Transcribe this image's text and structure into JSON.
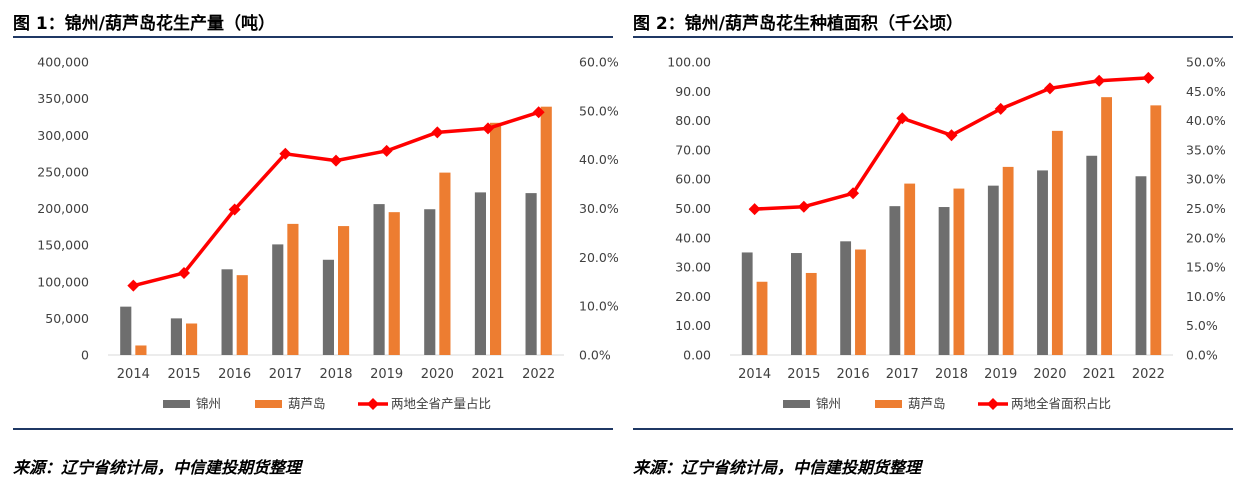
{
  "colors": {
    "jinzhou": "#6e6e6e",
    "huludao": "#ed7d31",
    "share": "#ff0000",
    "rule": "#1f3864"
  },
  "legend_labels": {
    "jinzhou": "锦州",
    "huludao": "葫芦岛"
  },
  "panels": [
    {
      "title": "图 1：锦州/葫芦岛花生产量（吨）",
      "source": "来源：辽宁省统计局，中信建投期货整理"
    },
    {
      "title": "图 2：锦州/葫芦岛花生种植面积（千公顷）",
      "source": "来源：辽宁省统计局，中信建投期货整理"
    }
  ],
  "chart_data": [
    {
      "type": "bar",
      "title": "图 1：锦州/葫芦岛花生产量（吨）",
      "categories": [
        "2014",
        "2015",
        "2016",
        "2017",
        "2018",
        "2019",
        "2020",
        "2021",
        "2022"
      ],
      "series": [
        {
          "name": "锦州",
          "type": "bar",
          "axis": "left",
          "values": [
            66000,
            50000,
            117000,
            151000,
            130000,
            206000,
            199000,
            222000,
            221000
          ]
        },
        {
          "name": "葫芦岛",
          "type": "bar",
          "axis": "left",
          "values": [
            13000,
            43000,
            109000,
            179000,
            176000,
            195000,
            249000,
            317000,
            339000
          ]
        },
        {
          "name": "两地全省产量占比",
          "type": "line",
          "axis": "right",
          "values": [
            14.2,
            16.8,
            29.8,
            41.2,
            39.8,
            41.8,
            45.6,
            46.4,
            49.7
          ]
        }
      ],
      "y_left": {
        "min": 0,
        "max": 400000,
        "ticks": [
          "0",
          "50,000",
          "100,000",
          "150,000",
          "200,000",
          "250,000",
          "300,000",
          "350,000",
          "400,000"
        ]
      },
      "y_right": {
        "min": 0,
        "max": 60,
        "ticks": [
          "0.0%",
          "10.0%",
          "20.0%",
          "30.0%",
          "40.0%",
          "50.0%",
          "60.0%"
        ]
      },
      "grid": false,
      "legend_position": "bottom"
    },
    {
      "type": "bar",
      "title": "图 2：锦州/葫芦岛花生种植面积（千公顷）",
      "categories": [
        "2014",
        "2015",
        "2016",
        "2017",
        "2018",
        "2019",
        "2020",
        "2021",
        "2022"
      ],
      "series": [
        {
          "name": "锦州",
          "type": "bar",
          "axis": "left",
          "values": [
            35.0,
            34.8,
            38.8,
            50.8,
            50.5,
            57.8,
            63.0,
            68.0,
            61.0
          ]
        },
        {
          "name": "葫芦岛",
          "type": "bar",
          "axis": "left",
          "values": [
            25.0,
            28.0,
            36.0,
            58.5,
            56.8,
            64.2,
            76.5,
            88.0,
            85.2
          ]
        },
        {
          "name": "两地全省面积占比",
          "type": "line",
          "axis": "right",
          "values": [
            24.9,
            25.3,
            27.6,
            40.4,
            37.5,
            42.0,
            45.5,
            46.8,
            47.3
          ]
        }
      ],
      "y_left": {
        "min": 0,
        "max": 100,
        "ticks": [
          "0.00",
          "10.00",
          "20.00",
          "30.00",
          "40.00",
          "50.00",
          "60.00",
          "70.00",
          "80.00",
          "90.00",
          "100.00"
        ]
      },
      "y_right": {
        "min": 0,
        "max": 50,
        "ticks": [
          "0.0%",
          "5.0%",
          "10.0%",
          "15.0%",
          "20.0%",
          "25.0%",
          "30.0%",
          "35.0%",
          "40.0%",
          "45.0%",
          "50.0%"
        ]
      },
      "grid": false,
      "legend_position": "bottom"
    }
  ]
}
